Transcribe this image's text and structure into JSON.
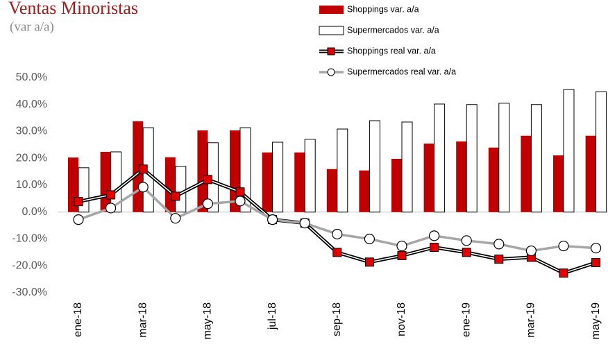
{
  "chart_data": {
    "type": "combo",
    "title": "Ventas Minoristas",
    "subtitle": "(var a/a)",
    "categories": [
      "ene-18",
      null,
      "mar-18",
      null,
      "may-18",
      null,
      "jul-18",
      null,
      "sep-18",
      null,
      "nov-18",
      null,
      "ene-19",
      null,
      "mar-19",
      null,
      "may-19"
    ],
    "series": [
      {
        "name": "Shoppings var. a/a",
        "type": "bar",
        "color": "#c00000",
        "values": [
          20.3,
          22.4,
          33.8,
          20.4,
          30.4,
          30.4,
          22.2,
          22.2,
          16.0,
          15.5,
          19.8,
          25.5,
          26.3,
          24.0,
          28.4,
          21.1,
          28.4
        ]
      },
      {
        "name": "Supermercados var. a/a",
        "type": "bar",
        "color": "#ffffff",
        "values": [
          16.5,
          22.4,
          31.4,
          17.0,
          25.8,
          31.4,
          26.0,
          27.1,
          30.9,
          34.0,
          33.5,
          40.2,
          40.0,
          40.5,
          40.0,
          45.6,
          44.8
        ]
      },
      {
        "name": "Shoppings real var. a/a",
        "type": "line",
        "color": "#e00000",
        "values": [
          3.9,
          6.4,
          16.0,
          5.9,
          12.1,
          7.5,
          -2.8,
          -4.1,
          -15.0,
          -18.6,
          -16.2,
          -13.1,
          -15.0,
          -17.5,
          -16.8,
          -22.7,
          -18.8
        ]
      },
      {
        "name": "Supermercados real var. a/a",
        "type": "line",
        "color": "#a6a6a6",
        "values": [
          -2.8,
          1.5,
          9.3,
          -2.3,
          3.1,
          4.1,
          -2.8,
          -4.1,
          -8.2,
          -10.0,
          -12.6,
          -8.8,
          -10.6,
          -11.9,
          -14.4,
          -12.6,
          -13.4
        ]
      }
    ],
    "ylim": [
      -30,
      50
    ],
    "yticks": [
      {
        "value": -30,
        "label": "-30.0%"
      },
      {
        "value": -20,
        "label": "-20.0%"
      },
      {
        "value": -10,
        "label": "-10.0%"
      },
      {
        "value": 0,
        "label": "0.0%"
      },
      {
        "value": 10,
        "label": "10.0%"
      },
      {
        "value": 20,
        "label": "20.0%"
      },
      {
        "value": 30,
        "label": "30.0%"
      },
      {
        "value": 40,
        "label": "40.0%"
      },
      {
        "value": 50,
        "label": "50.0%"
      }
    ],
    "grid": false
  }
}
